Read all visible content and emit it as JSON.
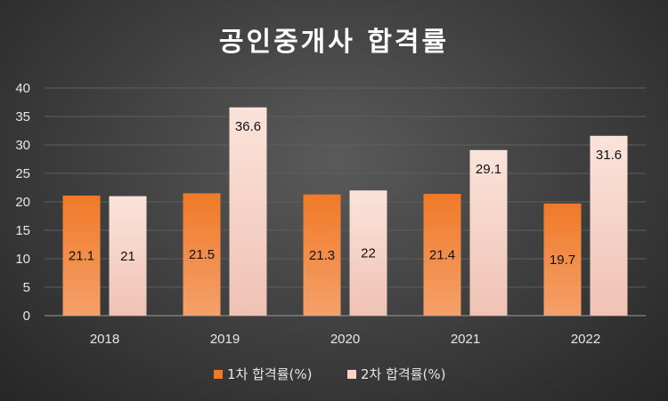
{
  "chart_data": {
    "type": "bar",
    "title": "공인중개사 합격률",
    "categories": [
      "2018",
      "2019",
      "2020",
      "2021",
      "2022"
    ],
    "series": [
      {
        "name": "1차 합격률(%)",
        "values": [
          21.1,
          21.5,
          21.3,
          21.4,
          19.7
        ],
        "color": "#f07a28"
      },
      {
        "name": "2차 합격률(%)",
        "values": [
          21,
          36.6,
          22,
          29.1,
          31.6
        ],
        "color": "#f8d3c6"
      }
    ],
    "ylim": [
      0,
      40
    ],
    "yticks": [
      0,
      5,
      10,
      15,
      20,
      25,
      30,
      35,
      40
    ],
    "grid": true,
    "legend": "bottom",
    "data_labels": true
  }
}
